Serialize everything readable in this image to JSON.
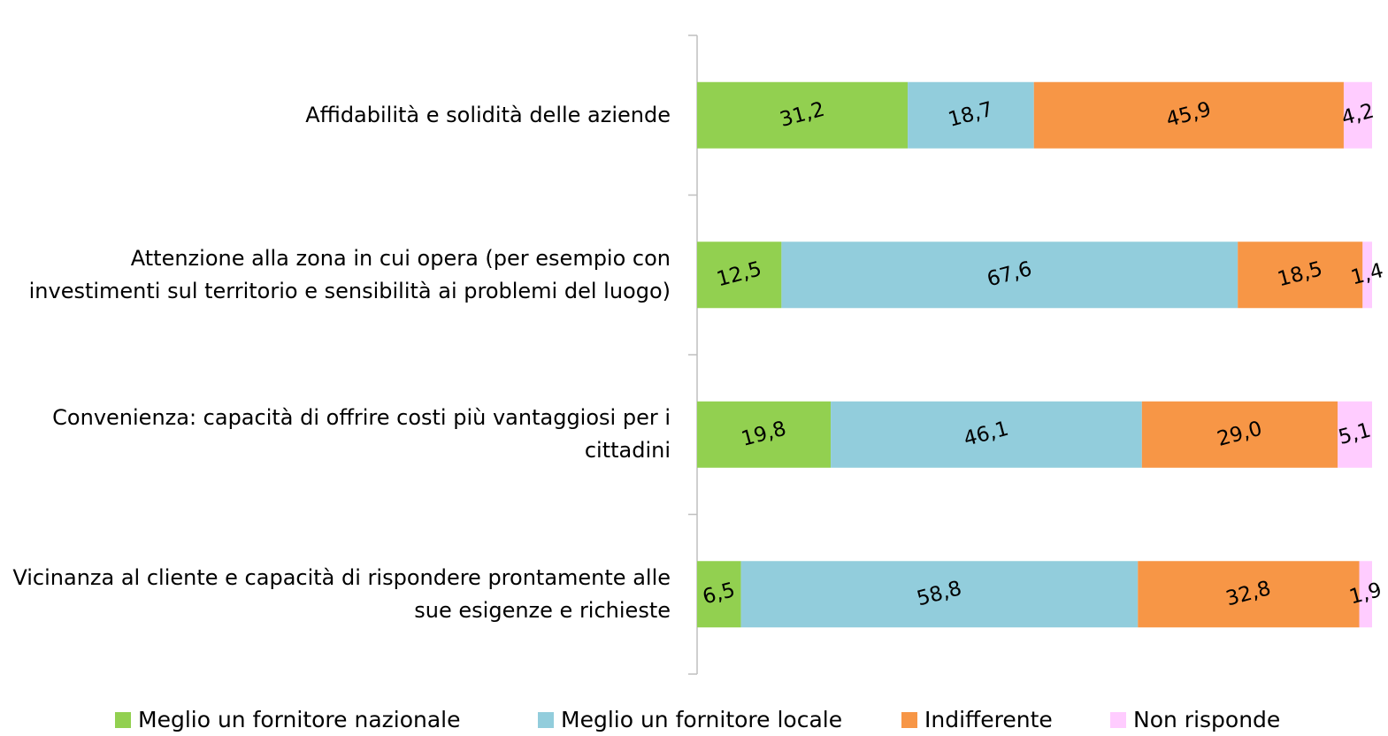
{
  "chart_data": {
    "type": "stacked-barh",
    "categories": [
      "Affidabilità e solidità delle aziende",
      "Attenzione alla zona in cui opera (per esempio con investimenti sul territorio e sensibilità ai problemi del luogo)",
      "Convenienza: capacità di offrire costi più vantaggiosi per i cittadini",
      "Vicinanza al cliente e capacità di rispondere prontamente alle sue esigenze e richieste"
    ],
    "series": [
      {
        "name": "Meglio un fornitore nazionale",
        "color": "#92d050",
        "values": [
          31.2,
          12.5,
          19.8,
          6.5
        ],
        "value_labels": [
          "31,2",
          "12,5",
          "19,8",
          "6,5"
        ]
      },
      {
        "name": "Meglio un fornitore locale",
        "color": "#92cddc",
        "values": [
          18.7,
          67.6,
          46.1,
          58.8
        ],
        "value_labels": [
          "18,7",
          "67,6",
          "46,1",
          "58,8"
        ]
      },
      {
        "name": "Indifferente",
        "color": "#f79646",
        "values": [
          45.9,
          18.5,
          29.0,
          32.8
        ],
        "value_labels": [
          "45,9",
          "18,5",
          "29,0",
          "32,8"
        ]
      },
      {
        "name": "Non risponde",
        "color": "#ffccff",
        "values": [
          4.2,
          1.4,
          5.1,
          1.9
        ],
        "value_labels": [
          "4,2",
          "1,4",
          "5,1",
          "1,9"
        ]
      }
    ],
    "xlim": [
      0,
      100
    ],
    "legend": "bottom"
  }
}
